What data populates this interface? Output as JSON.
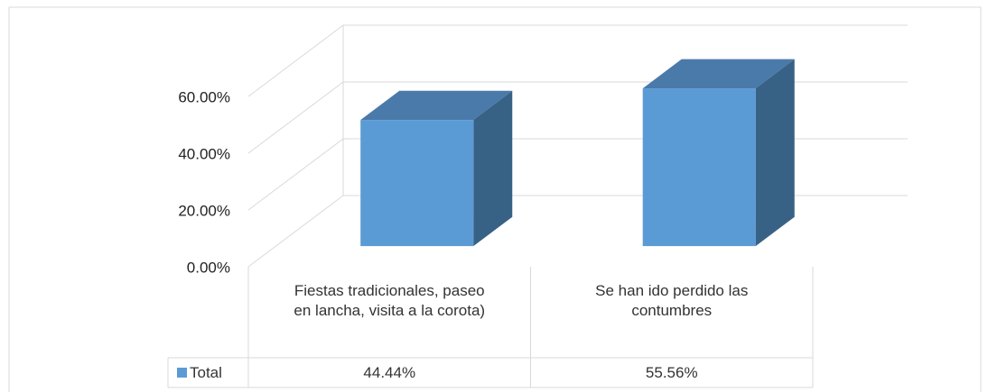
{
  "chart_data": {
    "type": "bar3d",
    "categories": [
      "Fiestas tradicionales, paseo en lancha, visita a la corota)",
      "Se han ido perdido las contumbres"
    ],
    "series": [
      {
        "name": "Total",
        "color": "#5b9bd5",
        "values": [
          44.44,
          55.56
        ],
        "value_labels": [
          "44.44%",
          "55.56%"
        ]
      }
    ],
    "ylim": [
      0,
      60
    ],
    "yticks": [
      {
        "value": 0,
        "label": "0.00%"
      },
      {
        "value": 20,
        "label": "20.00%"
      },
      {
        "value": 40,
        "label": "40.00%"
      },
      {
        "value": 60,
        "label": "60.00%"
      }
    ],
    "grid": true,
    "legend": "table"
  }
}
